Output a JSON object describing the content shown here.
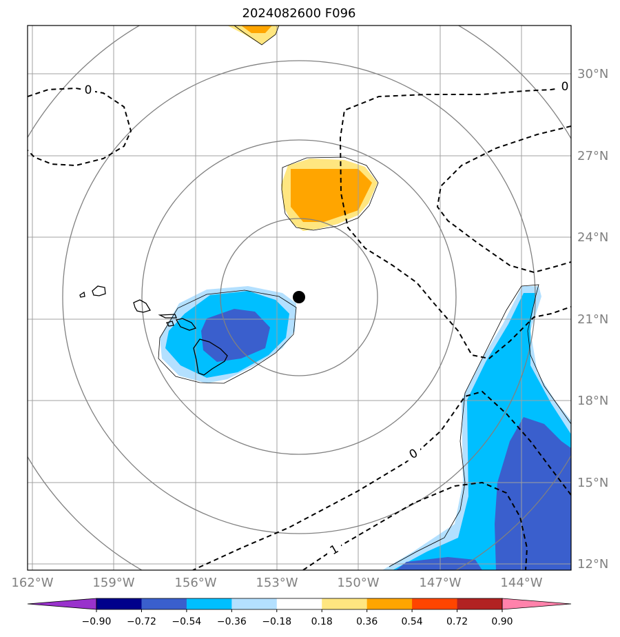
{
  "title": "2024082600 F096",
  "lat_labels": [
    "30°N",
    "27°N",
    "24°N",
    "21°N",
    "18°N",
    "15°N",
    "12°N"
  ],
  "lon_labels": [
    "162°W",
    "159°W",
    "156°W",
    "153°W",
    "150°W",
    "147°W",
    "144°W"
  ],
  "contour_labels": [
    "0",
    "0",
    "0",
    "1"
  ],
  "colorbar": {
    "tick_labels": [
      "−0.90",
      "−0.72",
      "−0.54",
      "−0.36",
      "−0.18",
      "0.18",
      "0.36",
      "0.54",
      "0.72",
      "0.90"
    ],
    "colors": [
      "#9932cc",
      "#00008b",
      "#3a5fcd",
      "#00bfff",
      "#b3e0ff",
      "#ffffff",
      "#ffe680",
      "#ffa500",
      "#ff4500",
      "#b22222",
      "#ff82ab"
    ]
  },
  "storm_center": {
    "lon": -152.0,
    "lat": 21.8
  }
}
